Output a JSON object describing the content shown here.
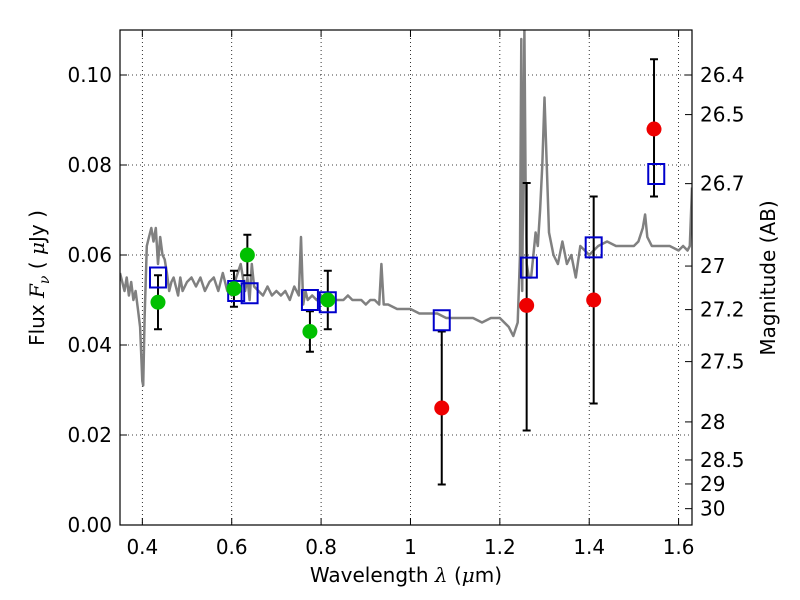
{
  "chart_data": {
    "type": "scatter",
    "xlabel": {
      "pre": "Wavelength",
      "sym": "λ",
      "post": "(",
      "mu": "μ",
      "unit": "m)"
    },
    "ylabel": {
      "pre": "Flux",
      "sym": "F",
      "sub": "ν",
      "post": "(",
      "mu": "μ",
      "unit": "Jy )"
    },
    "y2label": "Magnitude (AB)",
    "xlim": [
      0.35,
      1.63
    ],
    "ylim": [
      0.0,
      0.11
    ],
    "grid": true,
    "x_ticks": [
      {
        "v": 0.4,
        "label": "0.4"
      },
      {
        "v": 0.6,
        "label": "0.6"
      },
      {
        "v": 0.8,
        "label": "0.8"
      },
      {
        "v": 1.0,
        "label": "1"
      },
      {
        "v": 1.2,
        "label": "1.2"
      },
      {
        "v": 1.4,
        "label": "1.4"
      },
      {
        "v": 1.6,
        "label": "1.6"
      }
    ],
    "y_ticks": [
      {
        "v": 0.0,
        "label": "0.00"
      },
      {
        "v": 0.02,
        "label": "0.02"
      },
      {
        "v": 0.04,
        "label": "0.04"
      },
      {
        "v": 0.06,
        "label": "0.06"
      },
      {
        "v": 0.08,
        "label": "0.08"
      },
      {
        "v": 0.1,
        "label": "0.10"
      }
    ],
    "y2_ticks": [
      {
        "mag": 26.4,
        "label": "26.4"
      },
      {
        "mag": 26.5,
        "label": "26.5"
      },
      {
        "mag": 26.7,
        "label": "26.7"
      },
      {
        "mag": 27.0,
        "label": "27"
      },
      {
        "mag": 27.2,
        "label": "27.2"
      },
      {
        "mag": 27.5,
        "label": "27.5"
      },
      {
        "mag": 28.0,
        "label": "28"
      },
      {
        "mag": 28.5,
        "label": "28.5"
      },
      {
        "mag": 29.0,
        "label": "29"
      },
      {
        "mag": 30.0,
        "label": "30"
      }
    ],
    "magnitude_zero_point": 23.9,
    "series": [
      {
        "kind": "line",
        "color": "#808080",
        "x": [
          0.35,
          0.36,
          0.365,
          0.37,
          0.375,
          0.38,
          0.385,
          0.39,
          0.395,
          0.4,
          0.402,
          0.405,
          0.41,
          0.415,
          0.42,
          0.425,
          0.43,
          0.435,
          0.44,
          0.445,
          0.45,
          0.455,
          0.46,
          0.465,
          0.47,
          0.48,
          0.485,
          0.49,
          0.5,
          0.51,
          0.52,
          0.53,
          0.54,
          0.55,
          0.56,
          0.57,
          0.58,
          0.59,
          0.6,
          0.61,
          0.62,
          0.63,
          0.635,
          0.64,
          0.645,
          0.65,
          0.66,
          0.67,
          0.68,
          0.69,
          0.7,
          0.71,
          0.72,
          0.73,
          0.74,
          0.75,
          0.755,
          0.76,
          0.765,
          0.77,
          0.78,
          0.79,
          0.8,
          0.81,
          0.82,
          0.83,
          0.84,
          0.85,
          0.86,
          0.87,
          0.88,
          0.89,
          0.9,
          0.91,
          0.92,
          0.93,
          0.935,
          0.94,
          0.945,
          0.95,
          0.97,
          0.99,
          1.0,
          1.02,
          1.04,
          1.06,
          1.08,
          1.1,
          1.12,
          1.14,
          1.16,
          1.18,
          1.2,
          1.22,
          1.23,
          1.24,
          1.245,
          1.248,
          1.25,
          1.255,
          1.258,
          1.26,
          1.265,
          1.27,
          1.275,
          1.28,
          1.285,
          1.29,
          1.295,
          1.3,
          1.31,
          1.32,
          1.33,
          1.34,
          1.35,
          1.36,
          1.37,
          1.38,
          1.39,
          1.4,
          1.42,
          1.44,
          1.46,
          1.48,
          1.5,
          1.51,
          1.52,
          1.525,
          1.53,
          1.54,
          1.56,
          1.58,
          1.6,
          1.61,
          1.62,
          1.625,
          1.63
        ],
        "y": [
          0.056,
          0.052,
          0.055,
          0.051,
          0.054,
          0.05,
          0.052,
          0.048,
          0.044,
          0.032,
          0.031,
          0.046,
          0.062,
          0.064,
          0.066,
          0.063,
          0.066,
          0.058,
          0.064,
          0.06,
          0.059,
          0.056,
          0.052,
          0.054,
          0.055,
          0.051,
          0.055,
          0.052,
          0.054,
          0.055,
          0.053,
          0.055,
          0.052,
          0.054,
          0.055,
          0.052,
          0.056,
          0.052,
          0.051,
          0.055,
          0.058,
          0.052,
          0.055,
          0.05,
          0.058,
          0.053,
          0.052,
          0.051,
          0.053,
          0.051,
          0.052,
          0.051,
          0.052,
          0.05,
          0.053,
          0.051,
          0.064,
          0.049,
          0.052,
          0.05,
          0.051,
          0.05,
          0.051,
          0.05,
          0.05,
          0.05,
          0.05,
          0.05,
          0.051,
          0.05,
          0.05,
          0.05,
          0.049,
          0.05,
          0.05,
          0.049,
          0.058,
          0.049,
          0.049,
          0.049,
          0.048,
          0.048,
          0.048,
          0.047,
          0.047,
          0.047,
          0.046,
          0.046,
          0.046,
          0.046,
          0.045,
          0.046,
          0.046,
          0.044,
          0.042,
          0.045,
          0.06,
          0.108,
          0.052,
          0.11,
          0.07,
          0.058,
          0.055,
          0.055,
          0.06,
          0.065,
          0.062,
          0.07,
          0.08,
          0.095,
          0.065,
          0.06,
          0.058,
          0.063,
          0.058,
          0.06,
          0.055,
          0.062,
          0.061,
          0.06,
          0.062,
          0.063,
          0.062,
          0.062,
          0.062,
          0.063,
          0.066,
          0.069,
          0.064,
          0.062,
          0.062,
          0.062,
          0.061,
          0.062,
          0.061,
          0.062,
          0.075
        ]
      },
      {
        "kind": "points",
        "marker": "square-open",
        "color": "#0000cc",
        "x": [
          0.435,
          0.61,
          0.64,
          0.775,
          0.815,
          1.07,
          1.265,
          1.41,
          1.55
        ],
        "y": [
          0.055,
          0.052,
          0.0515,
          0.05,
          0.0495,
          0.0455,
          0.0572,
          0.0617,
          0.078
        ]
      },
      {
        "kind": "points",
        "marker": "circle",
        "color": "#00c000",
        "x": [
          0.435,
          0.605,
          0.635,
          0.775,
          0.815
        ],
        "y": [
          0.0495,
          0.0525,
          0.06,
          0.043,
          0.05
        ],
        "yerr": [
          0.006,
          0.004,
          0.0045,
          0.0045,
          0.0065
        ]
      },
      {
        "kind": "points",
        "marker": "circle",
        "color": "#ee0000",
        "x": [
          1.07,
          1.26,
          1.41,
          1.545
        ],
        "y": [
          0.026,
          0.0488,
          0.05,
          0.088
        ],
        "yerr_low": [
          0.017,
          0.0278,
          0.023,
          0.015
        ],
        "yerr_high": [
          0.017,
          0.0272,
          0.023,
          0.0155
        ]
      }
    ]
  }
}
